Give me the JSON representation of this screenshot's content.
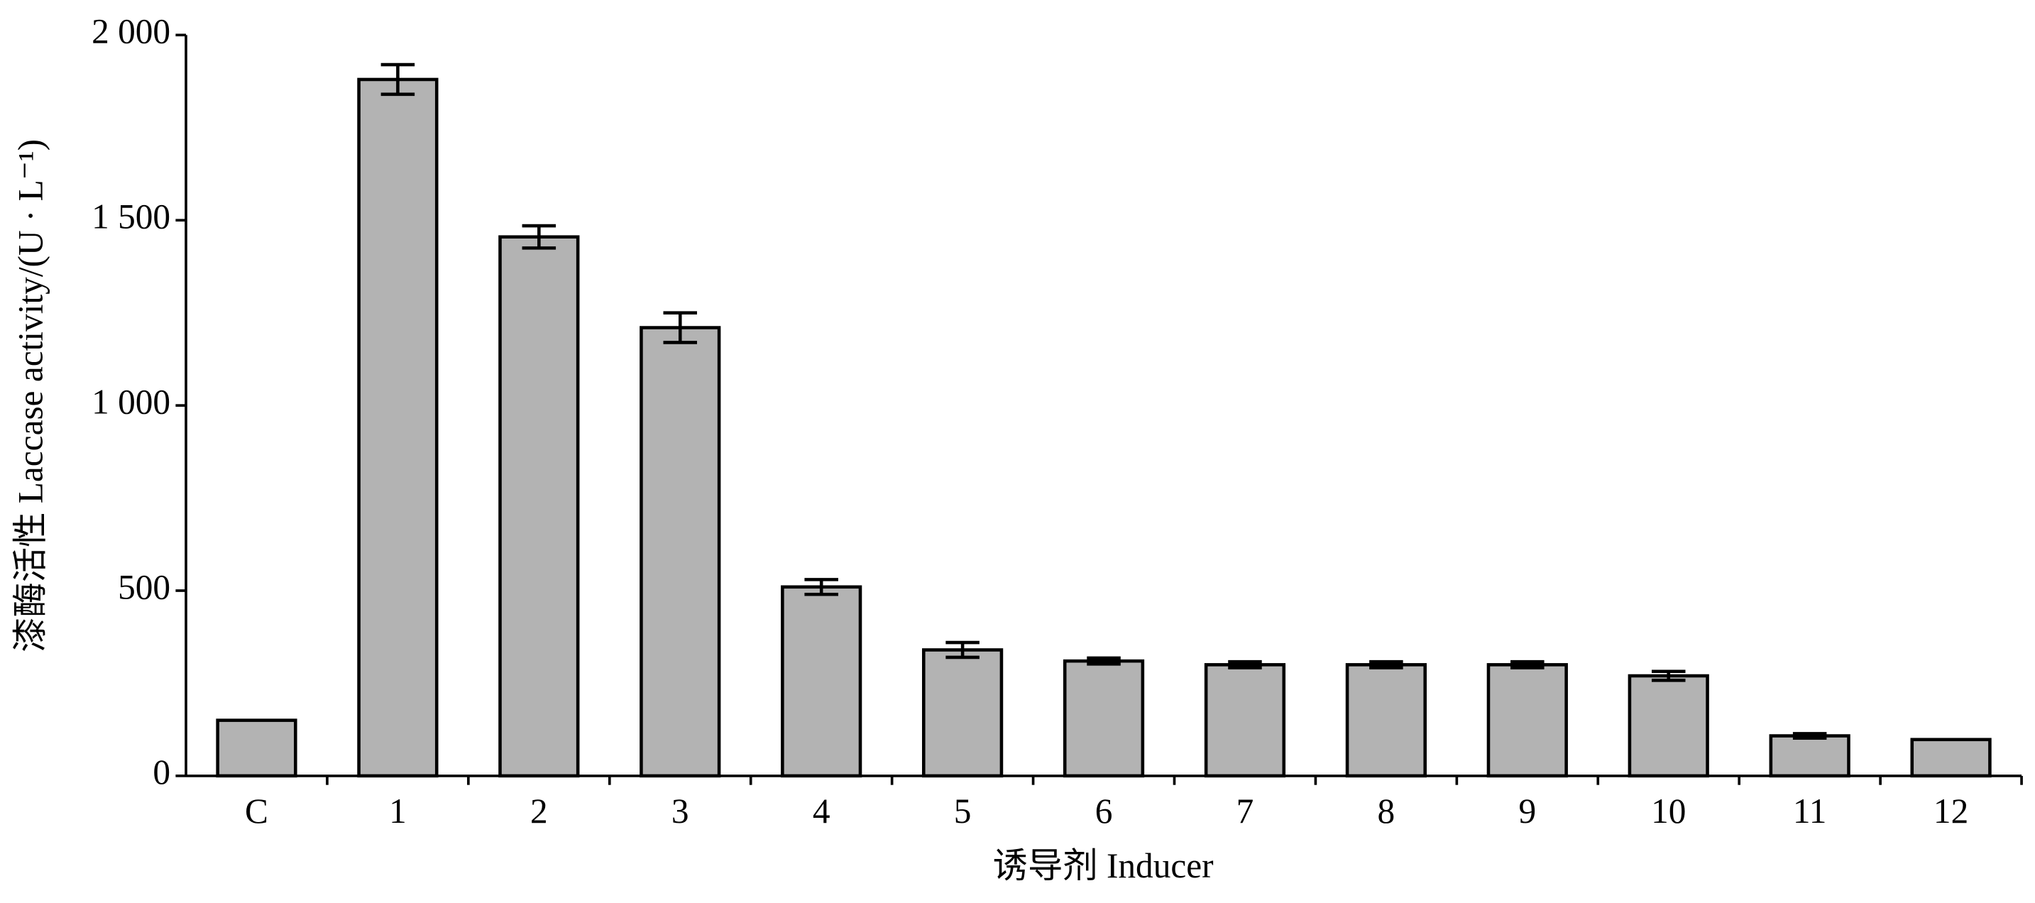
{
  "chart_data": {
    "type": "bar",
    "x_label": "诱导剂 Inducer",
    "y_label": "漆酶活性 Laccase activity/(U · L⁻¹)",
    "categories": [
      "C",
      "1",
      "2",
      "3",
      "4",
      "5",
      "6",
      "7",
      "8",
      "9",
      "10",
      "11",
      "12"
    ],
    "values": [
      150,
      1880,
      1455,
      1210,
      510,
      340,
      310,
      300,
      300,
      300,
      270,
      108,
      98
    ],
    "errors": [
      null,
      40,
      30,
      40,
      20,
      20,
      8,
      8,
      8,
      8,
      12,
      6,
      null
    ],
    "color": "#b3b3b3",
    "ylim": [
      0,
      2000
    ],
    "yticks": [
      0,
      500,
      {
        "value": 1000,
        "label": "1 000"
      },
      {
        "value": 1500,
        "label": "1 500"
      },
      {
        "value": 2000,
        "label": "2 000"
      }
    ],
    "grid": false
  }
}
